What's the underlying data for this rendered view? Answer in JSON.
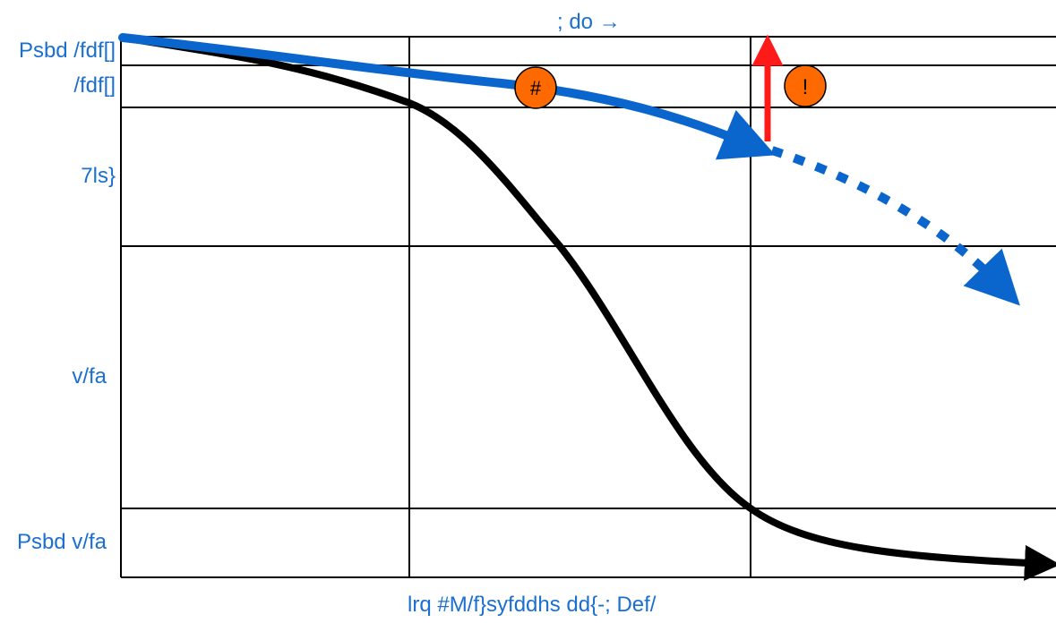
{
  "top_label": "; do →",
  "bottom_label": "lrq #M/f}syfddhs dd{-; Def/",
  "y_labels": [
    {
      "text": "Psbd /fdf[]"
    },
    {
      "text": "/fdf[]"
    },
    {
      "text": "7ls}"
    },
    {
      "text": "v/fa"
    },
    {
      "text": "Psbd v/fa"
    }
  ],
  "markers": [
    {
      "text": "#"
    },
    {
      "text": "!"
    }
  ],
  "colors": {
    "blue": "#0a66cc",
    "label_blue": "#1a6fd0",
    "black": "#000000",
    "red": "#ff1a1a",
    "marker_fill": "#ff6a00"
  }
}
